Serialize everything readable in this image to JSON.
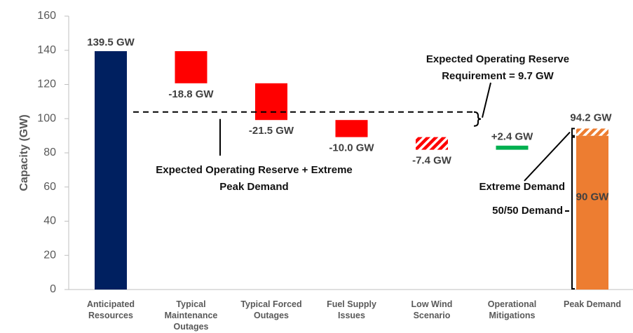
{
  "chart_data": {
    "type": "waterfall",
    "y_label": "Capacity (GW)",
    "ylim": [
      0,
      160
    ],
    "yticks": [
      0,
      20,
      40,
      60,
      80,
      100,
      120,
      140,
      160
    ],
    "categories": [
      "Anticipated Resources",
      "Typical Maintenance Outages",
      "Typical Forced Outages",
      "Fuel Supply Issues",
      "Low Wind Scenario",
      "Operational Mitigations",
      "Peak Demand"
    ],
    "kinds": [
      "total",
      "delta",
      "delta",
      "delta",
      "delta",
      "delta",
      "total"
    ],
    "values": [
      139.5,
      -18.8,
      -21.5,
      -10.0,
      -7.4,
      2.4,
      90
    ],
    "value_labels": [
      "139.5 GW",
      "-18.8 GW",
      "-21.5 GW",
      "-10.0 GW",
      "-7.4 GW",
      "+2.4 GW",
      "90 GW"
    ],
    "colors": [
      "#002060",
      "#ff0000",
      "#ff0000",
      "#ff0000",
      "#ff0000",
      "#00b050",
      "#ed7d31"
    ],
    "hatched": [
      false,
      false,
      false,
      false,
      true,
      false,
      false
    ],
    "extreme_demand": {
      "value": 4.2,
      "label": "Extreme Demand",
      "color": "#ed7d31",
      "hatched": true
    },
    "peak_total": {
      "value": 94.2,
      "label": "94.2 GW"
    },
    "base_demand_label": "50/50 Demand",
    "reserve": {
      "value": 9.7,
      "label": "Expected Operating Reserve Requirement = 9.7 GW"
    },
    "reserve_line_label": "Expected Operating Reserve + Extreme Peak Demand"
  }
}
